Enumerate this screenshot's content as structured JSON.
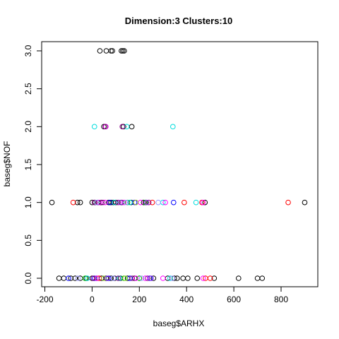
{
  "chart_data": {
    "type": "scatter",
    "title": "Dimension:3 Clusters:10",
    "xlabel": "baseg$ARHX",
    "ylabel": "baseg$NOF",
    "xlim": [
      -200,
      920
    ],
    "ylim": [
      -0.1,
      3.1
    ],
    "x_ticks": [
      -200,
      0,
      200,
      400,
      600,
      800
    ],
    "y_ticks": [
      0.0,
      0.5,
      1.0,
      1.5,
      2.0,
      2.5,
      3.0
    ],
    "x_tick_labels": [
      "-200",
      "0",
      "200",
      "400",
      "600",
      "800"
    ],
    "y_tick_labels": [
      "0.0",
      "0.5",
      "1.0",
      "1.5",
      "2.0",
      "2.5",
      "3.0"
    ],
    "grid": false,
    "marker": "open-circle",
    "series": [
      {
        "color": "#000000",
        "points": [
          [
            33,
            3
          ],
          [
            60,
            3
          ],
          [
            80,
            3
          ],
          [
            86,
            3
          ],
          [
            124,
            3
          ],
          [
            130,
            3
          ],
          [
            136,
            3
          ],
          [
            50,
            2
          ],
          [
            133,
            2
          ],
          [
            168,
            2
          ],
          [
            -170,
            1
          ],
          [
            -62,
            1
          ],
          [
            -50,
            1
          ],
          [
            0,
            1
          ],
          [
            12,
            1
          ],
          [
            25,
            1
          ],
          [
            38,
            1
          ],
          [
            70,
            1
          ],
          [
            80,
            1
          ],
          [
            90,
            1
          ],
          [
            100,
            1
          ],
          [
            125,
            1
          ],
          [
            165,
            1
          ],
          [
            218,
            1
          ],
          [
            228,
            1
          ],
          [
            478,
            1
          ],
          [
            900,
            1
          ],
          [
            -140,
            0
          ],
          [
            -120,
            0
          ],
          [
            -90,
            0
          ],
          [
            -72,
            0
          ],
          [
            -50,
            0
          ],
          [
            -25,
            0
          ],
          [
            0,
            0
          ],
          [
            20,
            0
          ],
          [
            40,
            0
          ],
          [
            60,
            0
          ],
          [
            80,
            0
          ],
          [
            95,
            0
          ],
          [
            120,
            0
          ],
          [
            150,
            0
          ],
          [
            180,
            0
          ],
          [
            200,
            0
          ],
          [
            260,
            0
          ],
          [
            320,
            0
          ],
          [
            348,
            0
          ],
          [
            360,
            0
          ],
          [
            385,
            0
          ],
          [
            405,
            0
          ],
          [
            445,
            0
          ],
          [
            517,
            0
          ],
          [
            620,
            0
          ],
          [
            700,
            0
          ],
          [
            720,
            0
          ]
        ]
      },
      {
        "color": "#ff0000",
        "points": [
          [
            -80,
            1
          ],
          [
            255,
            1
          ],
          [
            390,
            1
          ],
          [
            465,
            1
          ],
          [
            830,
            1
          ],
          [
            30,
            0
          ],
          [
            480,
            0
          ],
          [
            500,
            0
          ]
        ]
      },
      {
        "color": "#00cc00",
        "points": [
          [
            150,
            1
          ],
          [
            225,
            1
          ],
          [
            -30,
            0
          ],
          [
            135,
            0
          ],
          [
            200,
            0
          ]
        ]
      },
      {
        "color": "#0000ff",
        "points": [
          [
            75,
            1
          ],
          [
            180,
            1
          ],
          [
            345,
            1
          ],
          [
            -100,
            0
          ],
          [
            10,
            0
          ],
          [
            70,
            0
          ],
          [
            160,
            0
          ],
          [
            245,
            0
          ]
        ]
      },
      {
        "color": "#00dddd",
        "points": [
          [
            10,
            2
          ],
          [
            147,
            2
          ],
          [
            342,
            2
          ],
          [
            95,
            1
          ],
          [
            160,
            1
          ],
          [
            300,
            1
          ],
          [
            440,
            1
          ],
          [
            -20,
            0
          ],
          [
            115,
            0
          ],
          [
            330,
            0
          ]
        ]
      },
      {
        "color": "#ff00ff",
        "points": [
          [
            58,
            2
          ],
          [
            30,
            1
          ],
          [
            55,
            1
          ],
          [
            135,
            1
          ],
          [
            205,
            1
          ],
          [
            310,
            1
          ],
          [
            470,
            1
          ],
          [
            20,
            0
          ],
          [
            185,
            0
          ],
          [
            225,
            0
          ],
          [
            300,
            0
          ],
          [
            470,
            0
          ]
        ]
      },
      {
        "color": "#8b008b",
        "points": [
          [
            56,
            2
          ],
          [
            128,
            2
          ],
          [
            10,
            1
          ],
          [
            45,
            1
          ],
          [
            110,
            1
          ],
          [
            185,
            1
          ],
          [
            240,
            1
          ],
          [
            5,
            0
          ],
          [
            110,
            0
          ],
          [
            170,
            0
          ],
          [
            235,
            0
          ]
        ]
      },
      {
        "color": "#9acd32",
        "points": [
          [
            185,
            1
          ],
          [
            50,
            0
          ],
          [
            140,
            0
          ]
        ]
      },
      {
        "color": "#9999ff",
        "points": [
          [
            20,
            1
          ],
          [
            145,
            1
          ],
          [
            280,
            1
          ],
          [
            -60,
            0
          ],
          [
            90,
            0
          ],
          [
            210,
            0
          ],
          [
            340,
            0
          ]
        ]
      },
      {
        "color": "#8a2be2",
        "points": [
          [
            120,
            1
          ],
          [
            230,
            1
          ],
          [
            65,
            0
          ],
          [
            250,
            0
          ]
        ]
      }
    ]
  }
}
